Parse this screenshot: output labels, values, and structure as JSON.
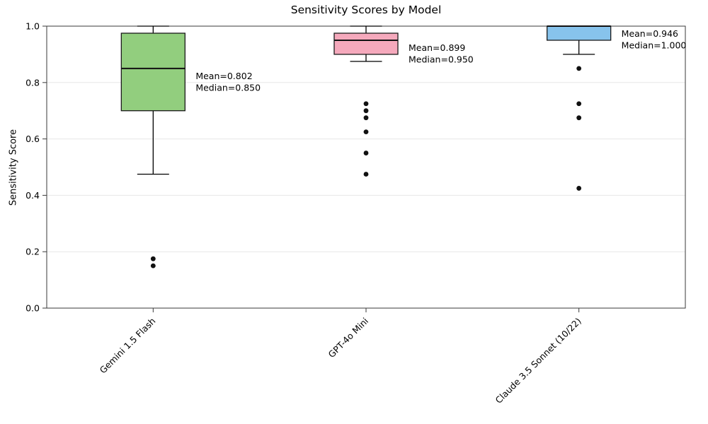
{
  "figure": {
    "title": "Sensitivity Scores by Model",
    "ylabel": "Sensitivity Score"
  },
  "chart_data": {
    "type": "box",
    "title": "Sensitivity Scores by Model",
    "xlabel": "",
    "ylabel": "Sensitivity Score",
    "ylim": [
      0.0,
      1.0
    ],
    "yticks": [
      "0.0",
      "0.2",
      "0.4",
      "0.6",
      "0.8",
      "1.0"
    ],
    "grid": "horizontal-light",
    "legend": "none",
    "categories": [
      "Gemini 1.5 Flash",
      "GPT-4o Mini",
      "Claude 3.5 Sonnet (10/22)"
    ],
    "series": [
      {
        "category": "Gemini 1.5 Flash",
        "fill_color": "#92ce7e",
        "whisker_low": 0.475,
        "q1": 0.7,
        "median": 0.85,
        "q3": 0.975,
        "whisker_high": 1.0,
        "mean": 0.802,
        "outliers": [
          0.175,
          0.15
        ],
        "annotation_lines": [
          "Mean=0.802",
          "Median=0.850"
        ]
      },
      {
        "category": "GPT-4o Mini",
        "fill_color": "#f5a9bc",
        "whisker_low": 0.875,
        "q1": 0.9,
        "median": 0.95,
        "q3": 0.975,
        "whisker_high": 1.0,
        "mean": 0.899,
        "outliers": [
          0.725,
          0.7,
          0.675,
          0.625,
          0.55,
          0.475
        ],
        "annotation_lines": [
          "Mean=0.899",
          "Median=0.950"
        ]
      },
      {
        "category": "Claude 3.5 Sonnet (10/22)",
        "fill_color": "#87c3ec",
        "whisker_low": 0.9,
        "q1": 0.95,
        "median": 1.0,
        "q3": 1.0,
        "whisker_high": 1.0,
        "mean": 0.946,
        "outliers": [
          0.85,
          0.725,
          0.675,
          0.425
        ],
        "annotation_lines": [
          "Mean=0.946",
          "Median=1.000"
        ]
      }
    ],
    "style": {
      "box_edge_color": "#1a1a1a",
      "median_color": "#111111",
      "outlier_color": "#111111",
      "whisker_color": "#000000",
      "grid_color": "#e7e7e7",
      "spine_color": "#3a3a3a",
      "background": "#ffffff"
    }
  }
}
